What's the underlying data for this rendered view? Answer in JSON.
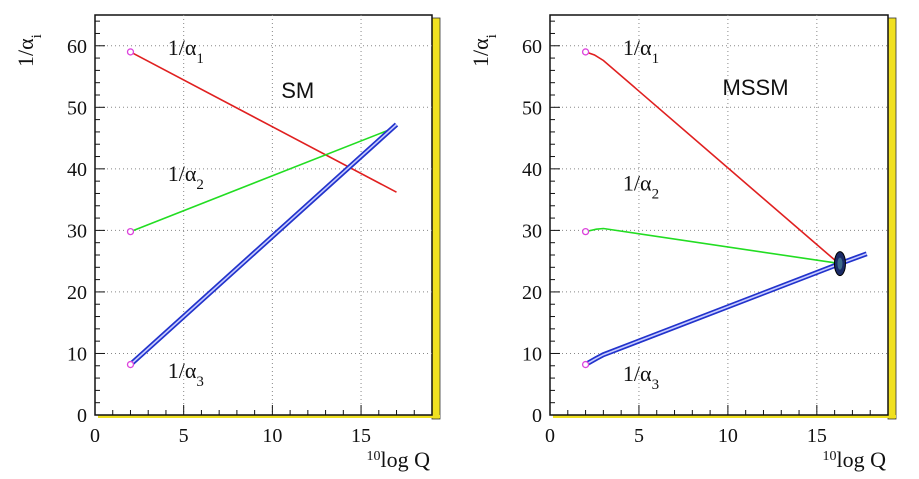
{
  "colors": {
    "alpha1": "#e02020",
    "alpha2": "#22dd22",
    "alpha3": "#2233cc",
    "marker": "#dd44dd",
    "frame_shadow": "#f0e020",
    "grid": "#888888",
    "blob": "#1a2a66"
  },
  "chart_data": [
    {
      "type": "line",
      "title": "SM",
      "xlabel": "10log Q",
      "xlabel_sup": "10",
      "xlabel_main": "log Q",
      "ylabel": "1/αi",
      "ylabel_main": "1/α",
      "ylabel_sub": "i",
      "xlim": [
        0,
        19
      ],
      "ylim": [
        0,
        65
      ],
      "xticks": [
        "0",
        "5",
        "10",
        "15"
      ],
      "yticks": [
        "0",
        "10",
        "20",
        "30",
        "40",
        "50",
        "60"
      ],
      "grid": true,
      "series": [
        {
          "name": "1/α1",
          "label_main": "1/α",
          "label_sub": "1",
          "color_key": "alpha1",
          "double": false,
          "x": [
            2,
            17
          ],
          "y": [
            59,
            36.2
          ],
          "label_at": [
            4.1,
            58.5
          ]
        },
        {
          "name": "1/α2",
          "label_main": "1/α",
          "label_sub": "2",
          "color_key": "alpha2",
          "double": false,
          "x": [
            2,
            17
          ],
          "y": [
            29.8,
            46.8
          ],
          "label_at": [
            4.1,
            38.0
          ]
        },
        {
          "name": "1/α3",
          "label_main": "1/α",
          "label_sub": "3",
          "color_key": "alpha3",
          "double": true,
          "x": [
            2,
            17
          ],
          "y": [
            8.2,
            47.2
          ],
          "label_at": [
            4.1,
            6.0
          ]
        }
      ],
      "markers": [
        [
          2,
          59
        ],
        [
          2,
          29.8
        ],
        [
          2,
          8.2
        ]
      ],
      "annotations": [
        {
          "text": "SM",
          "at": [
            10.5,
            51.5
          ]
        }
      ]
    },
    {
      "type": "line",
      "title": "MSSM",
      "xlabel": "10log Q",
      "xlabel_sup": "10",
      "xlabel_main": "log Q",
      "ylabel": "1/αi",
      "ylabel_main": "1/α",
      "ylabel_sub": "i",
      "xlim": [
        0,
        19
      ],
      "ylim": [
        0,
        65
      ],
      "xticks": [
        "0",
        "5",
        "10",
        "15"
      ],
      "yticks": [
        "0",
        "10",
        "20",
        "30",
        "40",
        "50",
        "60"
      ],
      "grid": true,
      "series": [
        {
          "name": "1/α1",
          "label_main": "1/α",
          "label_sub": "1",
          "color_key": "alpha1",
          "double": false,
          "x": [
            2,
            2.5,
            3,
            16,
            16.3
          ],
          "y": [
            59,
            58.5,
            57.6,
            25.2,
            24.6
          ],
          "label_at": [
            4.1,
            58.5
          ]
        },
        {
          "name": "1/α2",
          "label_main": "1/α",
          "label_sub": "2",
          "color_key": "alpha2",
          "double": false,
          "x": [
            2,
            2.6,
            3.0,
            16.3
          ],
          "y": [
            29.8,
            30.2,
            30.3,
            24.6
          ],
          "label_at": [
            4.1,
            36.5
          ]
        },
        {
          "name": "1/α3",
          "label_main": "1/α",
          "label_sub": "3",
          "color_key": "alpha3",
          "double": true,
          "x": [
            2,
            2.6,
            3,
            16.3,
            17.8
          ],
          "y": [
            8.2,
            9.2,
            9.8,
            24.6,
            26.2
          ],
          "label_at": [
            4.1,
            5.5
          ]
        }
      ],
      "markers": [
        [
          2,
          59
        ],
        [
          2,
          29.8
        ],
        [
          2,
          8.2
        ]
      ],
      "unification_point": [
        16.3,
        24.6
      ],
      "annotations": [
        {
          "text": "MSSM",
          "at": [
            9.7,
            52.0
          ]
        }
      ]
    }
  ]
}
